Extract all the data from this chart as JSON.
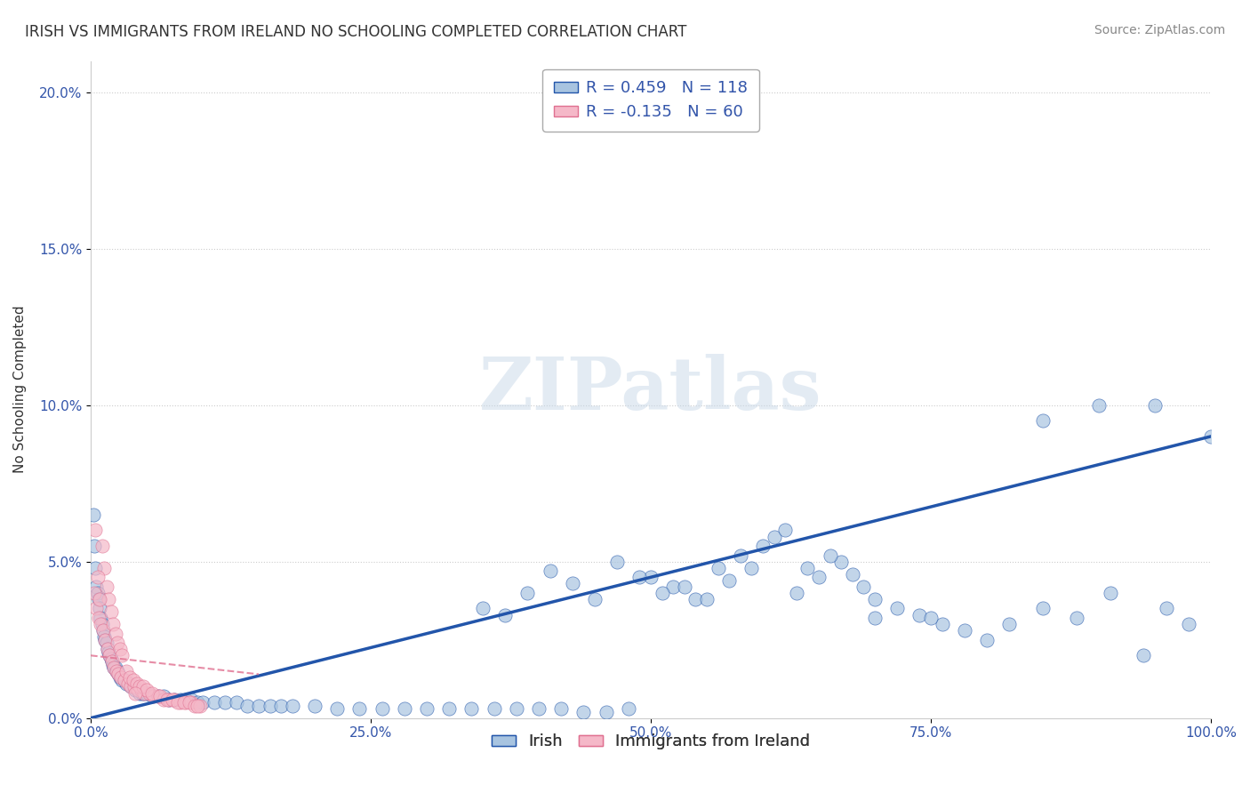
{
  "title": "IRISH VS IMMIGRANTS FROM IRELAND NO SCHOOLING COMPLETED CORRELATION CHART",
  "source": "Source: ZipAtlas.com",
  "xlabel": "",
  "ylabel": "No Schooling Completed",
  "watermark": "ZIPatlas",
  "legend_blue_R": "0.459",
  "legend_blue_N": "118",
  "legend_pink_R": "-0.135",
  "legend_pink_N": "60",
  "legend_blue_label": "Irish",
  "legend_pink_label": "Immigrants from Ireland",
  "blue_color": "#a8c4e0",
  "blue_line_color": "#2255aa",
  "pink_color": "#f5b8c8",
  "pink_line_color": "#e07090",
  "background_color": "#ffffff",
  "grid_color": "#cccccc",
  "xlim": [
    0,
    1.0
  ],
  "ylim": [
    0,
    0.21
  ],
  "yticks": [
    0,
    0.05,
    0.1,
    0.15,
    0.2
  ],
  "xticks": [
    0,
    0.25,
    0.5,
    0.75,
    1.0
  ],
  "blue_scatter_x": [
    0.002,
    0.003,
    0.004,
    0.005,
    0.006,
    0.007,
    0.008,
    0.009,
    0.01,
    0.011,
    0.012,
    0.013,
    0.014,
    0.015,
    0.016,
    0.017,
    0.018,
    0.019,
    0.02,
    0.021,
    0.022,
    0.023,
    0.024,
    0.025,
    0.026,
    0.027,
    0.028,
    0.03,
    0.032,
    0.034,
    0.036,
    0.038,
    0.04,
    0.042,
    0.044,
    0.046,
    0.048,
    0.05,
    0.055,
    0.06,
    0.065,
    0.07,
    0.075,
    0.08,
    0.085,
    0.09,
    0.095,
    0.1,
    0.11,
    0.12,
    0.13,
    0.14,
    0.15,
    0.16,
    0.17,
    0.18,
    0.2,
    0.22,
    0.24,
    0.26,
    0.28,
    0.3,
    0.32,
    0.34,
    0.36,
    0.38,
    0.4,
    0.42,
    0.44,
    0.46,
    0.48,
    0.5,
    0.52,
    0.54,
    0.56,
    0.58,
    0.6,
    0.35,
    0.37,
    0.39,
    0.41,
    0.43,
    0.45,
    0.47,
    0.49,
    0.51,
    0.53,
    0.55,
    0.57,
    0.59,
    0.61,
    0.63,
    0.65,
    0.67,
    0.69,
    0.62,
    0.64,
    0.66,
    0.68,
    0.7,
    0.72,
    0.74,
    0.76,
    0.78,
    0.8,
    0.82,
    0.85,
    0.88,
    0.91,
    0.94,
    0.96,
    0.98,
    1.0,
    0.75,
    0.9,
    0.95,
    0.85,
    0.7
  ],
  "blue_scatter_y": [
    0.065,
    0.055,
    0.048,
    0.042,
    0.04,
    0.038,
    0.035,
    0.032,
    0.03,
    0.028,
    0.026,
    0.025,
    0.024,
    0.022,
    0.021,
    0.02,
    0.019,
    0.018,
    0.017,
    0.016,
    0.016,
    0.015,
    0.015,
    0.014,
    0.013,
    0.013,
    0.012,
    0.012,
    0.011,
    0.011,
    0.01,
    0.01,
    0.009,
    0.009,
    0.008,
    0.008,
    0.008,
    0.008,
    0.007,
    0.007,
    0.007,
    0.006,
    0.006,
    0.006,
    0.006,
    0.006,
    0.005,
    0.005,
    0.005,
    0.005,
    0.005,
    0.004,
    0.004,
    0.004,
    0.004,
    0.004,
    0.004,
    0.003,
    0.003,
    0.003,
    0.003,
    0.003,
    0.003,
    0.003,
    0.003,
    0.003,
    0.003,
    0.003,
    0.002,
    0.002,
    0.003,
    0.045,
    0.042,
    0.038,
    0.048,
    0.052,
    0.055,
    0.035,
    0.033,
    0.04,
    0.047,
    0.043,
    0.038,
    0.05,
    0.045,
    0.04,
    0.042,
    0.038,
    0.044,
    0.048,
    0.058,
    0.04,
    0.045,
    0.05,
    0.042,
    0.06,
    0.048,
    0.052,
    0.046,
    0.038,
    0.035,
    0.033,
    0.03,
    0.028,
    0.025,
    0.03,
    0.035,
    0.032,
    0.04,
    0.02,
    0.035,
    0.03,
    0.09,
    0.032,
    0.1,
    0.1,
    0.095,
    0.032
  ],
  "pink_scatter_x": [
    0.003,
    0.005,
    0.007,
    0.009,
    0.011,
    0.013,
    0.015,
    0.017,
    0.019,
    0.021,
    0.023,
    0.025,
    0.027,
    0.03,
    0.033,
    0.036,
    0.039,
    0.042,
    0.045,
    0.048,
    0.052,
    0.056,
    0.06,
    0.065,
    0.07,
    0.075,
    0.08,
    0.085,
    0.09,
    0.01,
    0.012,
    0.014,
    0.016,
    0.018,
    0.02,
    0.022,
    0.024,
    0.026,
    0.028,
    0.032,
    0.035,
    0.038,
    0.041,
    0.044,
    0.047,
    0.05,
    0.055,
    0.062,
    0.068,
    0.073,
    0.078,
    0.083,
    0.088,
    0.093,
    0.098,
    0.006,
    0.008,
    0.04,
    0.004,
    0.095
  ],
  "pink_scatter_y": [
    0.04,
    0.035,
    0.032,
    0.03,
    0.028,
    0.025,
    0.022,
    0.02,
    0.018,
    0.016,
    0.015,
    0.014,
    0.013,
    0.012,
    0.011,
    0.01,
    0.01,
    0.009,
    0.009,
    0.008,
    0.008,
    0.007,
    0.007,
    0.006,
    0.006,
    0.006,
    0.005,
    0.005,
    0.005,
    0.055,
    0.048,
    0.042,
    0.038,
    0.034,
    0.03,
    0.027,
    0.024,
    0.022,
    0.02,
    0.015,
    0.013,
    0.012,
    0.011,
    0.01,
    0.01,
    0.009,
    0.008,
    0.007,
    0.006,
    0.006,
    0.005,
    0.005,
    0.005,
    0.004,
    0.004,
    0.045,
    0.038,
    0.008,
    0.06,
    0.004
  ],
  "blue_line_x": [
    0.0,
    1.0
  ],
  "blue_line_y": [
    0.0,
    0.09
  ],
  "pink_line_x": [
    0.0,
    0.1
  ],
  "pink_line_y": [
    0.022,
    0.018
  ],
  "pink_trend_x": [
    0.0,
    0.15
  ],
  "pink_trend_y": [
    0.018,
    0.012
  ]
}
